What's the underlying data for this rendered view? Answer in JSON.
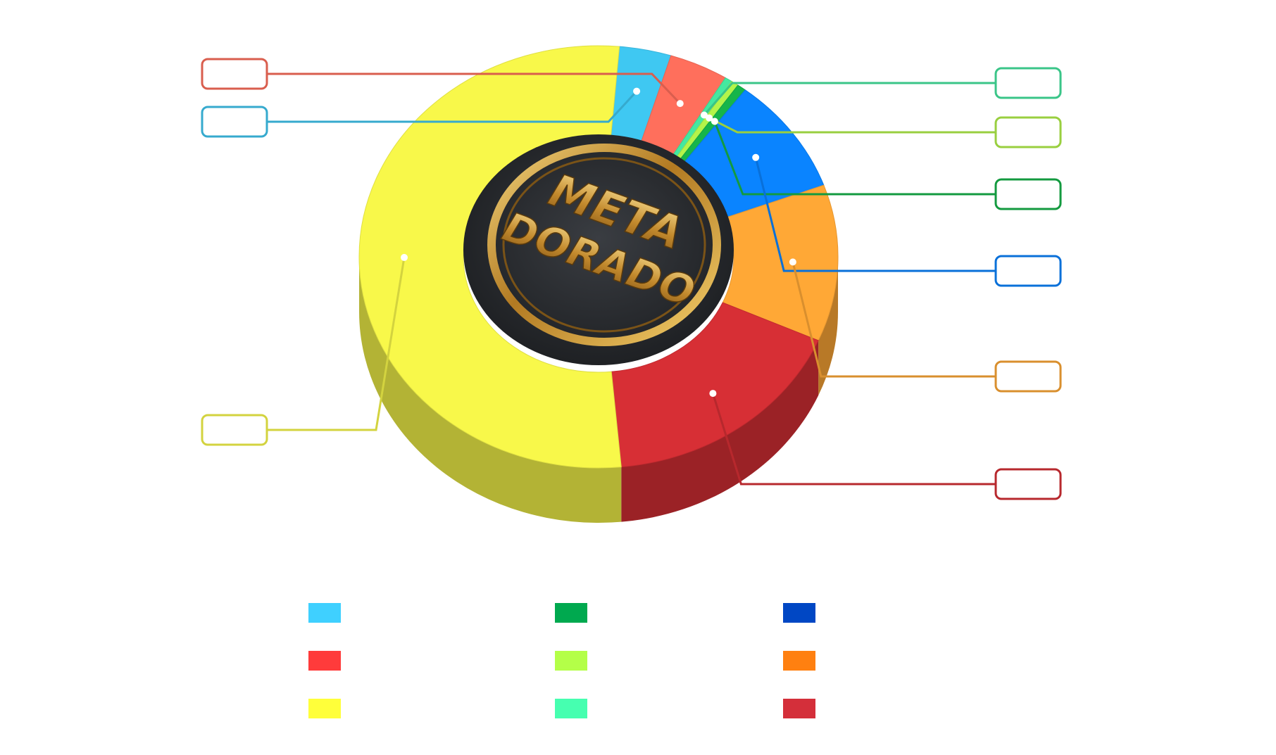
{
  "logo": {
    "line1": "META",
    "line2": "DORADO",
    "colors": {
      "disc": "#2b2e33",
      "ring": "#c9942f",
      "text": "#d7a741"
    }
  },
  "chart_data": {
    "type": "pie",
    "style": "3d-donut",
    "title": "",
    "slices": [
      {
        "value": 3.5,
        "color": "#3fc8f2",
        "label": ""
      },
      {
        "value": 4.0,
        "color": "#ff6f5c",
        "label": ""
      },
      {
        "value": 0.5,
        "color": "#44e8a0",
        "label": ""
      },
      {
        "value": 0.5,
        "color": "#b4f44a",
        "label": ""
      },
      {
        "value": 0.6,
        "color": "#16b54a",
        "label": ""
      },
      {
        "value": 9.0,
        "color": "#0a84ff",
        "label": ""
      },
      {
        "value": 12.0,
        "color": "#ffa836",
        "label": ""
      },
      {
        "value": 17.0,
        "color": "#d72f35",
        "label": ""
      },
      {
        "value": 52.9,
        "color": "#f8f84a",
        "label": ""
      }
    ],
    "legend": {
      "placement": "bottom",
      "items": [
        {
          "color": "#3fd0ff",
          "label": ""
        },
        {
          "color": "#ff3b3b",
          "label": ""
        },
        {
          "color": "#ffff3a",
          "label": ""
        },
        {
          "color": "#00a94f",
          "label": ""
        },
        {
          "color": "#b4ff48",
          "label": ""
        },
        {
          "color": "#46ffb0",
          "label": ""
        },
        {
          "color": "#0047c4",
          "label": ""
        },
        {
          "color": "#ff8010",
          "label": ""
        },
        {
          "color": "#d42f3a",
          "label": ""
        }
      ]
    }
  }
}
